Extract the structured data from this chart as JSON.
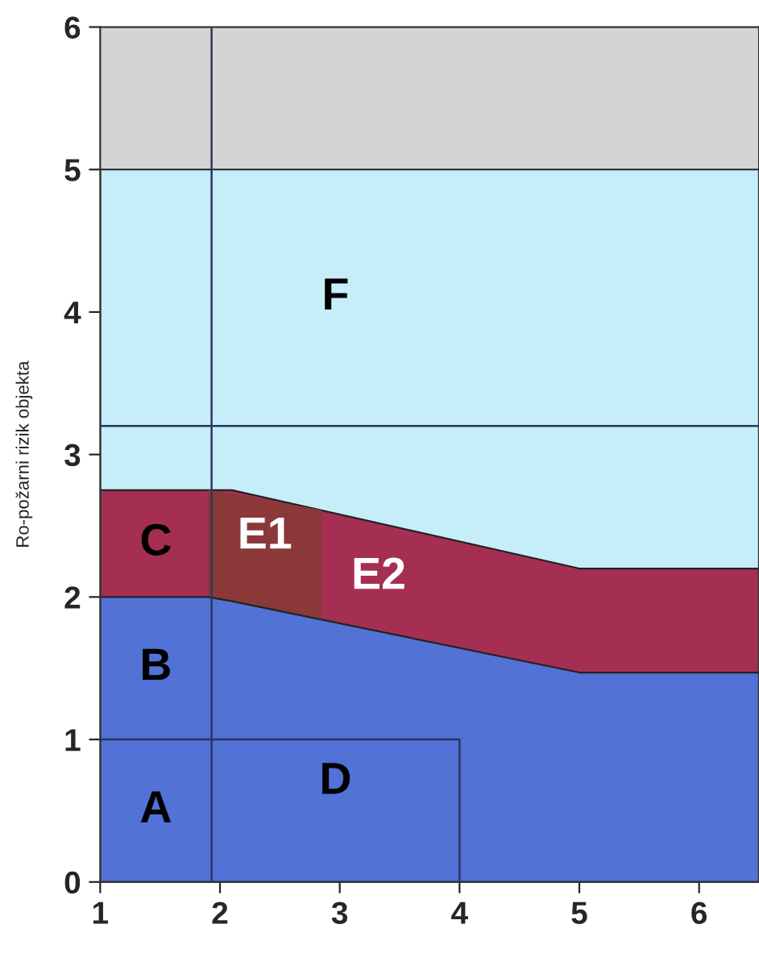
{
  "chart_data": {
    "type": "area",
    "ylabel": "Ro-požarni rizik objekta",
    "x": [
      1,
      1.9,
      2.1,
      5,
      6.5
    ],
    "series": [
      {
        "name": "F",
        "color": "#c6eef9",
        "values": [
          5,
          5,
          5,
          5,
          5
        ]
      },
      {
        "name": "E2",
        "color": "#a52f52",
        "values": [
          2.75,
          2.75,
          2.75,
          2.2,
          2.2
        ]
      },
      {
        "name": "E1",
        "color": "#8b3838",
        "x": [
          1.9,
          2.85
        ],
        "values": [
          2.75,
          2.61
        ]
      },
      {
        "color": "#5272d6",
        "values": [
          2,
          2,
          1.97,
          1.47,
          1.47
        ]
      },
      {
        "type": "line",
        "color": "#2a3560",
        "x": [
          1,
          4,
          4
        ],
        "values": [
          1,
          1,
          0
        ]
      }
    ],
    "bands": [
      {
        "axis": "y",
        "from": 5,
        "to": 6,
        "color": "#d4d4d4"
      }
    ],
    "ref_lines": [
      {
        "axis": "x",
        "value": 1.93
      },
      {
        "axis": "y",
        "value": 3.2
      }
    ],
    "annotations": [
      "A",
      "B",
      "C",
      "D"
    ],
    "xlim": [
      1,
      6.5
    ],
    "ylim": [
      0,
      6
    ],
    "xticks": [
      1,
      2,
      3,
      4,
      5,
      6
    ],
    "yticks": [
      0,
      1,
      2,
      3,
      4,
      5,
      6
    ],
    "grid": false,
    "legend": false
  }
}
